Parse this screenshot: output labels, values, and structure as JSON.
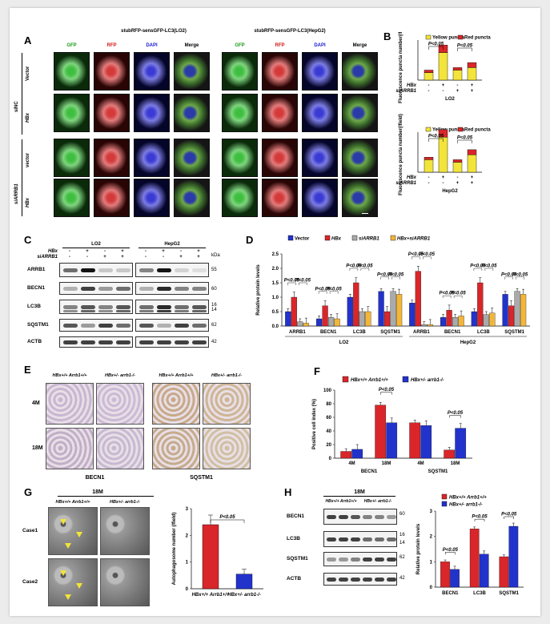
{
  "panel_labels": [
    "A",
    "B",
    "C",
    "D",
    "E",
    "F",
    "G",
    "H"
  ],
  "panelA": {
    "group_titles": [
      "stubRFP-sensGFP-LC3(LO2)",
      "stubRFP-sensGFP-LC3(HepG2)"
    ],
    "col_labels": [
      "GFP",
      "RFP",
      "DAPI",
      "Merge"
    ],
    "col_colors": [
      "#1a9a1a",
      "#d21414",
      "#1a1ad2",
      "#000000"
    ],
    "row_labels": [
      "Vector",
      "HBx",
      "vector",
      "HBx"
    ],
    "side_labels": [
      "siNC",
      "siARRB1"
    ]
  },
  "panelB": {
    "legend": [
      "Yellow puncta",
      "Red puncta"
    ],
    "colors": {
      "yellow": "#f2e43a",
      "red": "#d9262a"
    },
    "ylabel": "Fluorescence puncta number(/field)",
    "pval": "P<0.05",
    "row_labels": [
      "HBx",
      "siARRB1"
    ],
    "signs": [
      [
        "-",
        "+",
        "-",
        "+"
      ],
      [
        "-",
        "-",
        "+",
        "+"
      ]
    ],
    "charts": [
      {
        "cell": "LO2",
        "yellow": [
          3,
          11,
          4,
          5
        ],
        "red": [
          1,
          3,
          1,
          2
        ]
      },
      {
        "cell": "HepG2",
        "yellow": [
          5,
          14,
          4,
          7
        ],
        "red": [
          1,
          3,
          1,
          2
        ]
      }
    ]
  },
  "panelC": {
    "groups": [
      "LO2",
      "HepG2"
    ],
    "row_labels": [
      "HBx",
      "siARRB1"
    ],
    "signs": [
      [
        "-",
        "+",
        "-",
        "+",
        "-",
        "+",
        "-",
        "+"
      ],
      [
        "-",
        "-",
        "+",
        "+",
        "-",
        "-",
        "+",
        "+"
      ]
    ],
    "proteins": [
      "ARRB1",
      "BECN1",
      "LC3B",
      "SQSTM1",
      "ACTB"
    ],
    "kda_header": "kDa",
    "kda": [
      "55",
      "60",
      "16",
      "14",
      "62",
      "42"
    ]
  },
  "panelD": {
    "legend": [
      "Vector",
      "HBx",
      "siARRB1",
      "HBx+siARRB1"
    ],
    "colors": [
      "#2233cc",
      "#d9262a",
      "#aaaaaa",
      "#f2b63a"
    ],
    "ylabel": "Relative protein levels",
    "yticks": [
      "0.0",
      "0.5",
      "1.0",
      "1.5",
      "2.0",
      "2.5"
    ],
    "pval": "P<0.05",
    "categories": [
      "ARRB1",
      "BECN1",
      "LC3B",
      "SQSTM1",
      "ARRB1",
      "BECN1",
      "LC3B",
      "SQSTM1"
    ],
    "groups": [
      "LO2",
      "HepG2"
    ],
    "values": [
      [
        0.5,
        1.0,
        0.15,
        0.1
      ],
      [
        0.25,
        0.7,
        0.3,
        0.25
      ],
      [
        1.0,
        1.5,
        0.5,
        0.5
      ],
      [
        1.2,
        0.5,
        1.2,
        1.1
      ],
      [
        0.8,
        1.9,
        0.05,
        0.05
      ],
      [
        0.3,
        0.55,
        0.3,
        0.35
      ],
      [
        0.5,
        1.5,
        0.4,
        0.45
      ],
      [
        1.1,
        0.7,
        1.2,
        1.1
      ]
    ]
  },
  "panelE": {
    "col_labels": [
      "HBx+/+ Arrb1+/+",
      "HBx+/- arrb1-/-",
      "HBx+/+ Arrb1+/+",
      "HBx+/- arrb1-/-"
    ],
    "row_labels": [
      "4M",
      "18M"
    ],
    "bottom_labels": [
      "BECN1",
      "SQSTM1"
    ]
  },
  "panelF": {
    "legend": [
      "HBx+/+ Arrb1+/+",
      "HBx+/- arrb1-/-"
    ],
    "colors": [
      "#d9262a",
      "#2233cc"
    ],
    "ylabel": "Positive cell index (%)",
    "yticks": [
      "0",
      "20",
      "40",
      "60",
      "80",
      "100"
    ],
    "pval": "P<0.05",
    "categories": [
      "4M",
      "18M",
      "4M",
      "18M"
    ],
    "groups": [
      "BECN1",
      "SQSTM1"
    ],
    "values": [
      [
        10,
        13
      ],
      [
        78,
        52
      ],
      [
        52,
        48
      ],
      [
        12,
        44
      ]
    ]
  },
  "panelG": {
    "title": "18M",
    "col_labels": [
      "HBx+/+ Arrb1+/+",
      "HBx+/- arrb1-/-"
    ],
    "row_labels": [
      "Case1",
      "Case2"
    ],
    "ylabel": "Autophagosome number (/field)",
    "yticks": [
      "0",
      "1",
      "2",
      "3"
    ],
    "pval": "P<0.05",
    "categories": [
      "HBx+/+ Arrb1+/+",
      "HBx+/- arrb1-/-"
    ],
    "values": [
      2.4,
      0.55
    ],
    "colors": [
      "#d9262a",
      "#2233cc"
    ]
  },
  "panelH": {
    "title": "18M",
    "col_labels": [
      "HBx+/+ Arrb1+/+",
      "HBx+/- arrb1-/-"
    ],
    "proteins": [
      "BECN1",
      "LC3B",
      "SQSTM1",
      "ACTB"
    ],
    "kda": [
      "60",
      "16",
      "14",
      "62",
      "42"
    ],
    "legend": [
      "HBx+/+ Arrb1+/+",
      "HBx+/- arrb1-/-"
    ],
    "colors": [
      "#d9262a",
      "#2233cc"
    ],
    "ylabel": "Relative protein levels",
    "yticks": [
      "0",
      "1",
      "2",
      "3"
    ],
    "pval": "P<0.05",
    "categories": [
      "BECN1",
      "LC3B",
      "SQSTM1"
    ],
    "values": [
      [
        1.0,
        0.7
      ],
      [
        2.3,
        1.3
      ],
      [
        1.2,
        2.4
      ]
    ]
  }
}
